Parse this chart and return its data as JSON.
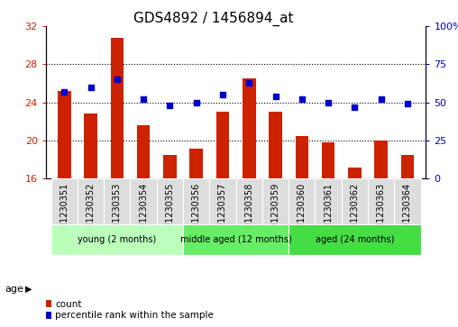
{
  "title": "GDS4892 / 1456894_at",
  "samples": [
    "GSM1230351",
    "GSM1230352",
    "GSM1230353",
    "GSM1230354",
    "GSM1230355",
    "GSM1230356",
    "GSM1230357",
    "GSM1230358",
    "GSM1230359",
    "GSM1230360",
    "GSM1230361",
    "GSM1230362",
    "GSM1230363",
    "GSM1230364"
  ],
  "counts": [
    25.2,
    22.8,
    30.8,
    21.6,
    18.5,
    19.2,
    23.0,
    26.5,
    23.0,
    20.5,
    19.8,
    17.2,
    20.0,
    18.5
  ],
  "percentiles": [
    57,
    60,
    65,
    52,
    48,
    50,
    55,
    63,
    54,
    52,
    50,
    47,
    52,
    49
  ],
  "ylim_left": [
    16,
    32
  ],
  "ylim_right": [
    0,
    100
  ],
  "yticks_left": [
    16,
    20,
    24,
    28,
    32
  ],
  "yticks_right": [
    0,
    25,
    50,
    75,
    100
  ],
  "bar_color": "#cc2200",
  "dot_color": "#0000cc",
  "bar_width": 0.5,
  "groups": [
    {
      "label": "young (2 months)",
      "start": 0,
      "end": 5
    },
    {
      "label": "middle aged (12 months)",
      "start": 5,
      "end": 9
    },
    {
      "label": "aged (24 months)",
      "start": 9,
      "end": 14
    }
  ],
  "group_colors": [
    "#bbffbb",
    "#66ee66",
    "#44dd44"
  ],
  "age_label": "age",
  "legend_count_label": "count",
  "legend_pct_label": "percentile rank within the sample",
  "title_fontsize": 11,
  "tick_fontsize": 8,
  "xtick_fontsize": 7,
  "left_tick_color": "#cc2200",
  "right_tick_color": "#0000cc",
  "background_color": "#ffffff",
  "plot_bg_color": "#ffffff",
  "dotted_grid_color": "#000000",
  "grid_yticks": [
    20,
    24,
    28
  ],
  "xtick_cell_color": "#dddddd",
  "xtick_cell_border": "#ffffff"
}
